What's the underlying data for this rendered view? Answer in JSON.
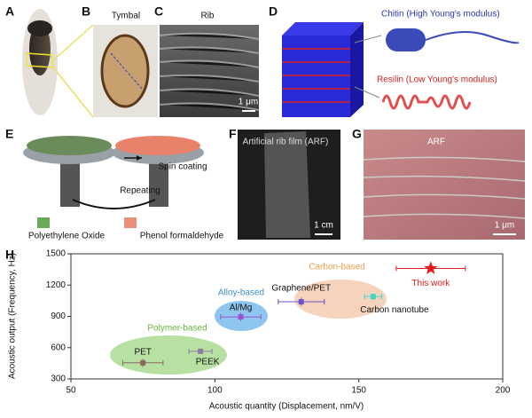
{
  "panels": [
    {
      "label": "A"
    },
    {
      "label": "B",
      "title": "Tymbal"
    },
    {
      "label": "C",
      "title": "Rib",
      "scale_bar": "1 μm"
    },
    {
      "label": "D",
      "annotations": [
        "Chitin (High Young's modulus)",
        "Resilin (Low Young's modulus)"
      ]
    },
    {
      "label": "E",
      "annotations": [
        "Spin coating",
        "Repeating",
        "Polyethylene Oxide",
        "Phenol formaldehyde"
      ]
    },
    {
      "label": "F",
      "title": "Artificial rib film (ARF)",
      "scale_bar": "1 cm"
    },
    {
      "label": "G",
      "title": "ARF",
      "scale_bar": "1 μm"
    }
  ],
  "chart_data": {
    "type": "scatter",
    "panel_label": "H",
    "x_label": "Acoustic quantity (Displacement, nm/V)",
    "y_label": "Acoustic output (Frequency, Hz)",
    "xlim": [
      50,
      200
    ],
    "xticks": [
      50,
      100,
      150,
      200
    ],
    "ylim": [
      300,
      1500
    ],
    "yticks": [
      300,
      600,
      900,
      1200,
      1500
    ],
    "annotations": [
      "Polymer-based",
      "Alloy-based",
      "Carbon-based"
    ],
    "series": [
      {
        "name": "PET",
        "color": "#8a6a60",
        "marker": "square",
        "x": 75,
        "y": 455,
        "xerr": 7,
        "yerr": 40
      },
      {
        "name": "PEEK",
        "color": "#8d7f9c",
        "marker": "square",
        "x": 95,
        "y": 565,
        "xerr": 4,
        "yerr": 20
      },
      {
        "name": "Al/Mg",
        "color": "#9b50d8",
        "marker": "square",
        "x": 109,
        "y": 895,
        "xerr": 7,
        "yerr": 40
      },
      {
        "name": "Graphene/PET",
        "color": "#6a55c8",
        "marker": "square",
        "x": 130,
        "y": 1040,
        "xerr": 8,
        "yerr": 40
      },
      {
        "name": "Carbon nanotube",
        "color": "#3fd6c8",
        "marker": "square",
        "x": 155,
        "y": 1090,
        "xerr": 3,
        "yerr": 30
      },
      {
        "name": "This work",
        "color": "#e8191b",
        "marker": "star",
        "x": 175,
        "y": 1360,
        "xerr": 12,
        "yerr": 30
      }
    ]
  }
}
